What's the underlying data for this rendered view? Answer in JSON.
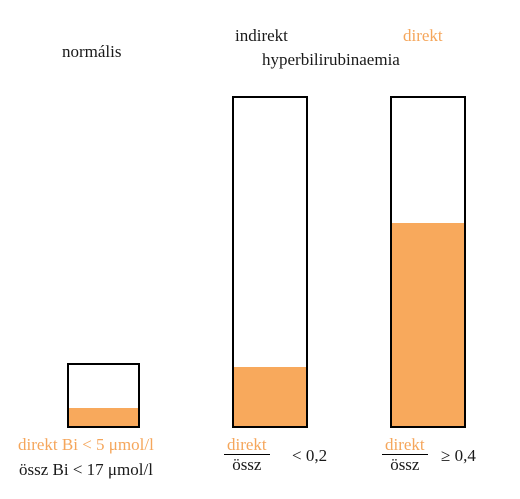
{
  "normal": {
    "title": "normális",
    "fill_fraction": 0.29,
    "legend_direct": "direkt Bi < 5 μmol/l",
    "legend_total": "össz Bi < 17 μmol/l"
  },
  "indirect": {
    "title_word": "indirekt",
    "fill_fraction": 0.18,
    "fraction_num": "direkt",
    "fraction_den": "össz",
    "relation": "< 0,2"
  },
  "direct": {
    "title_word": "direkt",
    "fill_fraction": 0.62,
    "fraction_num": "direkt",
    "fraction_den": "össz",
    "relation": "≥ 0,4"
  },
  "shared_title": "hyperbilirubinaemia",
  "colors": {
    "fill": "#f8a95c",
    "direct_text": "#f5a65b",
    "outline": "#000000"
  }
}
